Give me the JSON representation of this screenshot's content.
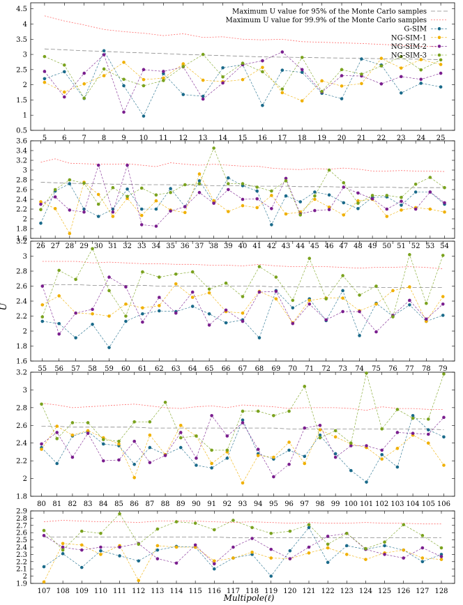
{
  "figure": {
    "ylabel": "U",
    "xlabel": "Multipole(ℓ)"
  },
  "legend": {
    "entries": [
      {
        "label": "Maximum U value for 95% of the Monte Carlo samples",
        "kind": "line",
        "color": "#888888",
        "dash": "6,3"
      },
      {
        "label": "Maximum U value for 99.9% of the Monte Carlo samples",
        "kind": "line",
        "color": "#ff6b6b",
        "dash": "2,2"
      },
      {
        "label": "G-SIM",
        "kind": "marker",
        "color": "#1a6a8a"
      },
      {
        "label": "NG-SIM-1",
        "kind": "marker",
        "color": "#f0b000"
      },
      {
        "label": "NG-SIM-2",
        "kind": "marker",
        "color": "#7a1e8e"
      },
      {
        "label": "NG-SIM-3",
        "kind": "marker",
        "color": "#7aa21e"
      }
    ]
  },
  "chart_data": [
    {
      "type": "line",
      "x": [
        5,
        6,
        7,
        8,
        9,
        10,
        11,
        12,
        13,
        14,
        15,
        16,
        17,
        18,
        19,
        20,
        21,
        22,
        23,
        24,
        25
      ],
      "ylim": [
        0.5,
        4.7
      ],
      "yticks": [
        0.5,
        1,
        1.5,
        2,
        2.5,
        3,
        3.5,
        4,
        4.5
      ],
      "series": [
        {
          "name": "Maximum U value for 95% of the Monte Carlo samples",
          "values": [
            3.18,
            3.15,
            3.12,
            3.1,
            3.07,
            3.05,
            3.03,
            3.0,
            2.98,
            2.96,
            2.94,
            2.92,
            2.91,
            2.9,
            2.89,
            2.88,
            2.87,
            2.86,
            2.85,
            2.84,
            2.83
          ]
        },
        {
          "name": "Maximum U value for 99.9% of the Monte Carlo samples",
          "values": [
            4.27,
            4.1,
            3.97,
            3.82,
            3.75,
            3.7,
            3.62,
            3.68,
            3.56,
            3.58,
            3.5,
            3.48,
            3.5,
            3.42,
            3.4,
            3.38,
            3.36,
            3.33,
            3.3,
            3.27,
            3.25
          ]
        },
        {
          "name": "G-SIM",
          "values": [
            2.2,
            2.43,
            1.55,
            3.12,
            1.97,
            0.97,
            2.37,
            1.68,
            1.62,
            2.56,
            2.66,
            1.32,
            2.48,
            2.41,
            1.72,
            1.54,
            2.85,
            2.65,
            1.73,
            2.05,
            1.93
          ]
        },
        {
          "name": "NG-SIM-1",
          "values": [
            2.08,
            1.76,
            2.03,
            2.3,
            2.74,
            2.17,
            2.22,
            2.69,
            2.15,
            2.1,
            2.17,
            2.57,
            1.74,
            1.47,
            2.13,
            1.96,
            2.04,
            2.87,
            2.55,
            2.83,
            2.67
          ]
        },
        {
          "name": "NG-SIM-2",
          "values": [
            2.44,
            1.6,
            2.38,
            2.99,
            1.1,
            2.5,
            2.44,
            2.59,
            1.53,
            2.06,
            2.66,
            2.79,
            3.08,
            2.5,
            1.76,
            2.3,
            2.29,
            2.03,
            2.27,
            2.18,
            2.38
          ]
        },
        {
          "name": "NG-SIM-3",
          "values": [
            2.93,
            2.65,
            1.56,
            2.52,
            2.18,
            1.97,
            2.14,
            2.6,
            3.0,
            2.26,
            2.71,
            2.43,
            1.86,
            2.9,
            1.78,
            2.5,
            2.35,
            2.62,
            2.93,
            2.49,
            2.82
          ]
        }
      ]
    },
    {
      "type": "line",
      "x": [
        26,
        27,
        28,
        29,
        30,
        31,
        32,
        33,
        34,
        35,
        36,
        37,
        38,
        39,
        40,
        41,
        42,
        43,
        44,
        45,
        46,
        47,
        48,
        49,
        50,
        51,
        52,
        53,
        54
      ],
      "ylim": [
        1.6,
        3.6
      ],
      "yticks": [
        1.6,
        1.8,
        2,
        2.2,
        2.4,
        2.6,
        2.8,
        3,
        3.2,
        3.4,
        3.6
      ],
      "series": [
        {
          "name": "Maximum U value for 95% of the Monte Carlo samples",
          "values": [
            2.75,
            2.74,
            2.73,
            2.72,
            2.72,
            2.71,
            2.71,
            2.7,
            2.7,
            2.7,
            2.69,
            2.69,
            2.68,
            2.68,
            2.68,
            2.67,
            2.67,
            2.67,
            2.66,
            2.66,
            2.66,
            2.65,
            2.65,
            2.65,
            2.65,
            2.64,
            2.64,
            2.64,
            2.64
          ]
        },
        {
          "name": "Maximum U value for 99.9% of the Monte Carlo samples",
          "values": [
            3.16,
            3.23,
            3.14,
            3.13,
            3.12,
            3.12,
            3.13,
            3.1,
            3.07,
            3.15,
            3.12,
            3.1,
            3.12,
            3.1,
            3.08,
            3.08,
            3.04,
            3.02,
            3.01,
            3.03,
            3.02,
            3.04,
            3.02,
            2.98,
            2.98,
            2.99,
            2.98,
            2.98,
            2.97
          ]
        },
        {
          "name": "G-SIM",
          "values": [
            1.91,
            2.57,
            2.72,
            2.2,
            2.05,
            2.2,
            2.61,
            2.2,
            2.2,
            2.62,
            2.25,
            2.78,
            2.33,
            2.84,
            2.68,
            2.57,
            1.88,
            2.47,
            2.35,
            2.55,
            2.49,
            2.33,
            2.21,
            2.44,
            2.45,
            2.28,
            2.55,
            2.55,
            2.3
          ]
        },
        {
          "name": "NG-SIM-1",
          "values": [
            2.35,
            2.21,
            1.7,
            2.75,
            2.5,
            2.05,
            2.42,
            2.07,
            2.37,
            2.18,
            2.13,
            2.92,
            2.37,
            2.15,
            2.27,
            2.23,
            2.48,
            2.1,
            2.14,
            2.4,
            2.24,
            2.08,
            2.37,
            2.4,
            2.05,
            2.18,
            2.23,
            2.2,
            2.14
          ]
        },
        {
          "name": "NG-SIM-2",
          "values": [
            2.3,
            2.45,
            2.18,
            2.14,
            3.1,
            2.14,
            3.1,
            1.88,
            1.85,
            2.16,
            2.25,
            2.54,
            2.32,
            2.6,
            2.4,
            2.41,
            2.21,
            2.83,
            2.1,
            2.17,
            2.19,
            2.65,
            2.53,
            2.41,
            2.2,
            2.36,
            2.2,
            2.55,
            2.33
          ]
        },
        {
          "name": "NG-SIM-3",
          "values": [
            2.19,
            2.6,
            2.8,
            2.73,
            2.3,
            2.64,
            2.46,
            2.63,
            2.49,
            2.54,
            2.7,
            2.72,
            3.45,
            2.72,
            2.72,
            2.65,
            2.57,
            2.78,
            2.08,
            2.47,
            3.0,
            2.74,
            2.32,
            2.48,
            2.48,
            2.44,
            2.71,
            2.85,
            2.64
          ]
        }
      ]
    },
    {
      "type": "line",
      "x": [
        55,
        56,
        57,
        58,
        59,
        60,
        61,
        62,
        63,
        64,
        65,
        66,
        67,
        68,
        69,
        70,
        71,
        72,
        73,
        74,
        75,
        76,
        77,
        78,
        79
      ],
      "ylim": [
        1.6,
        3.2
      ],
      "yticks": [
        1.6,
        1.8,
        2,
        2.2,
        2.4,
        2.6,
        2.8,
        3,
        3.2
      ],
      "series": [
        {
          "name": "Maximum U value for 95% of the Monte Carlo samples",
          "values": [
            2.62,
            2.62,
            2.62,
            2.61,
            2.61,
            2.61,
            2.61,
            2.6,
            2.6,
            2.6,
            2.6,
            2.6,
            2.6,
            2.6,
            2.59,
            2.59,
            2.59,
            2.59,
            2.59,
            2.59,
            2.58,
            2.58,
            2.58,
            2.58,
            2.58
          ]
        },
        {
          "name": "Maximum U value for 99.9% of the Monte Carlo samples",
          "values": [
            2.93,
            2.93,
            2.93,
            2.91,
            2.92,
            2.91,
            2.9,
            2.9,
            2.89,
            2.89,
            2.88,
            2.88,
            2.87,
            2.89,
            2.87,
            2.86,
            2.86,
            2.86,
            2.85,
            2.84,
            2.85,
            2.85,
            2.86,
            2.85,
            2.83
          ]
        },
        {
          "name": "G-SIM",
          "values": [
            2.13,
            2.1,
            1.91,
            2.09,
            1.78,
            2.13,
            2.23,
            2.27,
            2.26,
            2.33,
            2.23,
            2.11,
            2.15,
            1.91,
            2.54,
            2.31,
            2.43,
            2.14,
            2.54,
            1.94,
            2.37,
            2.2,
            2.35,
            2.13,
            2.21
          ]
        },
        {
          "name": "NG-SIM-1",
          "values": [
            2.35,
            2.47,
            2.24,
            2.23,
            2.2,
            2.36,
            2.31,
            2.34,
            2.63,
            2.45,
            2.51,
            2.26,
            2.24,
            2.53,
            2.43,
            2.11,
            2.41,
            2.44,
            2.44,
            2.27,
            2.36,
            2.54,
            2.59,
            2.13,
            2.46
          ]
        },
        {
          "name": "NG-SIM-2",
          "values": [
            2.6,
            1.96,
            2.24,
            2.29,
            2.72,
            2.59,
            2.12,
            2.45,
            2.24,
            2.52,
            2.08,
            2.28,
            2.13,
            2.52,
            2.53,
            2.1,
            2.36,
            2.15,
            2.26,
            2.26,
            1.99,
            2.21,
            2.41,
            2.16,
            2.36
          ]
        },
        {
          "name": "NG-SIM-3",
          "values": [
            2.19,
            2.81,
            2.69,
            3.1,
            2.54,
            2.2,
            2.79,
            2.72,
            2.76,
            2.79,
            2.56,
            2.64,
            2.46,
            2.86,
            2.72,
            2.41,
            2.97,
            2.43,
            2.74,
            2.48,
            2.6,
            2.19,
            3.02,
            2.37,
            3.01
          ]
        }
      ]
    },
    {
      "type": "line",
      "x": [
        80,
        81,
        82,
        83,
        84,
        85,
        86,
        87,
        88,
        89,
        90,
        91,
        92,
        93,
        94,
        95,
        96,
        97,
        98,
        99,
        100,
        101,
        102,
        103,
        104,
        105,
        106
      ],
      "ylim": [
        1.8,
        3.2
      ],
      "yticks": [
        1.8,
        2,
        2.2,
        2.4,
        2.6,
        2.8,
        3,
        3.2
      ],
      "series": [
        {
          "name": "Maximum U value for 95% of the Monte Carlo samples",
          "values": [
            2.59,
            2.59,
            2.58,
            2.58,
            2.58,
            2.58,
            2.58,
            2.57,
            2.57,
            2.57,
            2.57,
            2.57,
            2.57,
            2.57,
            2.57,
            2.57,
            2.56,
            2.56,
            2.56,
            2.56,
            2.56,
            2.56,
            2.56,
            2.56,
            2.56,
            2.56,
            2.55
          ]
        },
        {
          "name": "Maximum U value for 99.9% of the Monte Carlo samples",
          "values": [
            2.85,
            2.83,
            2.8,
            2.81,
            2.82,
            2.83,
            2.84,
            2.82,
            2.8,
            2.79,
            2.81,
            2.82,
            2.8,
            2.83,
            2.82,
            2.81,
            2.79,
            2.8,
            2.8,
            2.8,
            2.79,
            2.77,
            2.81,
            2.79,
            2.79,
            2.78,
            2.78
          ]
        },
        {
          "name": "G-SIM",
          "values": [
            2.35,
            2.17,
            2.48,
            2.53,
            2.39,
            2.37,
            2.16,
            2.35,
            2.27,
            2.35,
            2.15,
            2.12,
            2.23,
            2.66,
            2.28,
            2.22,
            2.32,
            2.25,
            2.49,
            2.28,
            2.09,
            1.96,
            2.27,
            2.13,
            2.71,
            2.55,
            2.47
          ]
        },
        {
          "name": "NG-SIM-1",
          "values": [
            2.33,
            2.59,
            2.49,
            2.54,
            2.46,
            2.39,
            2.01,
            2.49,
            2.27,
            2.6,
            2.48,
            2.17,
            2.3,
            1.95,
            2.26,
            2.24,
            2.41,
            2.17,
            2.55,
            2.47,
            2.39,
            2.35,
            2.22,
            2.34,
            2.49,
            2.4,
            2.15
          ]
        },
        {
          "name": "NG-SIM-2",
          "values": [
            2.39,
            2.52,
            2.24,
            2.51,
            2.2,
            2.21,
            2.42,
            2.18,
            2.26,
            2.52,
            2.23,
            2.71,
            2.48,
            2.63,
            2.33,
            2.02,
            2.16,
            2.57,
            2.6,
            2.24,
            2.37,
            2.37,
            2.32,
            2.52,
            2.51,
            2.5,
            2.69
          ]
        },
        {
          "name": "NG-SIM-3",
          "values": [
            2.84,
            2.45,
            2.63,
            2.63,
            2.44,
            2.42,
            2.64,
            2.64,
            2.86,
            2.46,
            2.48,
            2.32,
            2.32,
            2.76,
            2.76,
            2.71,
            2.76,
            3.04,
            2.46,
            2.54,
            2.4,
            3.19,
            2.56,
            2.78,
            2.68,
            2.67,
            3.18
          ]
        }
      ]
    },
    {
      "type": "line",
      "x": [
        107,
        108,
        109,
        110,
        111,
        112,
        113,
        114,
        115,
        116,
        117,
        118,
        119,
        120,
        121,
        122,
        123,
        124,
        125,
        126,
        127,
        128
      ],
      "ylim": [
        1.9,
        2.9
      ],
      "yticks": [
        1.9,
        2,
        2.1,
        2.2,
        2.3,
        2.4,
        2.5,
        2.6,
        2.7,
        2.8,
        2.9
      ],
      "series": [
        {
          "name": "Maximum U value for 95% of the Monte Carlo samples",
          "values": [
            2.54,
            2.54,
            2.54,
            2.54,
            2.54,
            2.54,
            2.54,
            2.54,
            2.54,
            2.54,
            2.53,
            2.53,
            2.53,
            2.53,
            2.53,
            2.53,
            2.53,
            2.53,
            2.53,
            2.53,
            2.53,
            2.53
          ]
        },
        {
          "name": "Maximum U value for 99.9% of the Monte Carlo samples",
          "values": [
            2.75,
            2.77,
            2.76,
            2.75,
            2.75,
            2.74,
            2.76,
            2.76,
            2.76,
            2.75,
            2.74,
            2.75,
            2.74,
            2.73,
            2.74,
            2.73,
            2.73,
            2.74,
            2.73,
            2.73,
            2.72,
            2.72
          ]
        },
        {
          "name": "G-SIM",
          "values": [
            2.13,
            2.31,
            2.12,
            2.35,
            2.28,
            2.21,
            2.36,
            2.41,
            2.4,
            2.1,
            2.25,
            2.3,
            2.0,
            2.35,
            2.67,
            2.19,
            2.42,
            2.37,
            2.42,
            2.36,
            2.2,
            2.3
          ]
        },
        {
          "name": "NG-SIM-1",
          "values": [
            1.92,
            2.45,
            2.43,
            2.3,
            2.42,
            1.94,
            2.42,
            2.4,
            2.4,
            2.21,
            2.25,
            2.33,
            2.25,
            2.24,
            2.32,
            2.39,
            2.3,
            2.23,
            2.32,
            2.36,
            2.25,
            2.23
          ]
        },
        {
          "name": "NG-SIM-2",
          "values": [
            2.56,
            2.4,
            2.36,
            2.4,
            2.4,
            2.45,
            2.24,
            2.18,
            2.43,
            2.17,
            2.4,
            2.52,
            2.37,
            2.24,
            2.4,
            2.55,
            2.59,
            2.37,
            2.3,
            2.25,
            2.39,
            2.27
          ]
        },
        {
          "name": "NG-SIM-3",
          "values": [
            2.63,
            2.36,
            2.62,
            2.59,
            2.86,
            2.44,
            2.65,
            2.75,
            2.73,
            2.64,
            2.77,
            2.67,
            2.59,
            2.62,
            2.71,
            2.44,
            2.59,
            2.38,
            2.47,
            2.71,
            2.56,
            2.39
          ]
        }
      ]
    }
  ]
}
